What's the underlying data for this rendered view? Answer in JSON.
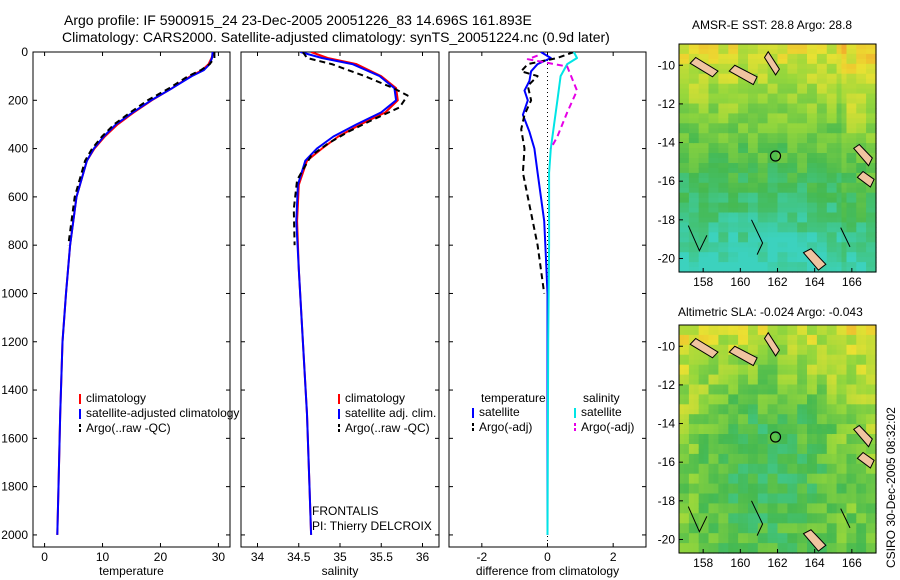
{
  "header": {
    "title_line1": "Argo profile: IF 5900915_24 23-Dec-2005 20051226_83 14.696S 161.893E",
    "title_line2": "Climatology: CARS2000. Satellite-adjusted climatology: synTS_20051224.nc (0.9d later)"
  },
  "stamp": "CSIRO 30-Dec-2005 08:32:02",
  "colors": {
    "climatology": "#ff0000",
    "satellite": "#0000ff",
    "argo": "#000000",
    "salinity_satellite": "#00e5e5",
    "salinity_argo": "#e600e6"
  },
  "chart_data": [
    {
      "type": "line",
      "id": "temperature",
      "xlabel": "temperature",
      "ylabel": "",
      "xlim": [
        -2,
        32
      ],
      "ylim": [
        2050,
        0
      ],
      "xticks": [
        0,
        10,
        20,
        30
      ],
      "yticks": [
        0,
        200,
        400,
        600,
        800,
        1000,
        1200,
        1400,
        1600,
        1800,
        2000
      ],
      "legend_position": "lower-center",
      "series": [
        {
          "name": "climatology",
          "color": "#ff0000",
          "style": "solid",
          "x": [
            29.2,
            28.8,
            28.3,
            27.2,
            25.2,
            22.0,
            18.5,
            15.4,
            12.6,
            10.4,
            8.6,
            7.3,
            5.5,
            4.4,
            3.7,
            3.1,
            2.7,
            2.4,
            2.2
          ],
          "y": [
            0,
            25,
            50,
            75,
            100,
            150,
            200,
            250,
            300,
            350,
            400,
            450,
            600,
            800,
            1000,
            1200,
            1500,
            1800,
            2000
          ]
        },
        {
          "name": "satellite-adjusted climatology",
          "color": "#0000ff",
          "style": "solid",
          "x": [
            29.0,
            28.9,
            28.5,
            27.5,
            25.4,
            22.0,
            18.4,
            15.2,
            12.3,
            10.2,
            8.5,
            7.3,
            5.5,
            4.4,
            3.7,
            3.1,
            2.7,
            2.4,
            2.2
          ],
          "y": [
            0,
            25,
            50,
            75,
            100,
            150,
            200,
            250,
            300,
            350,
            400,
            450,
            600,
            800,
            1000,
            1200,
            1500,
            1800,
            2000
          ]
        },
        {
          "name": "Argo(..raw -QC)",
          "color": "#000000",
          "style": "dash",
          "x": [
            29.3,
            29.3,
            28.5,
            27.0,
            24.8,
            21.5,
            17.8,
            14.8,
            12.0,
            9.9,
            8.2,
            7.0,
            5.2,
            4.1
          ],
          "y": [
            0,
            25,
            50,
            75,
            100,
            150,
            200,
            250,
            300,
            350,
            400,
            450,
            600,
            800
          ]
        }
      ]
    },
    {
      "type": "line",
      "id": "salinity",
      "xlabel": "salinity",
      "ylabel": "",
      "xlim": [
        33.8,
        36.2
      ],
      "ylim": [
        2050,
        0
      ],
      "xticks": [
        34,
        34.5,
        35,
        35.5,
        36
      ],
      "xtick_labels": [
        "34",
        "34.5",
        "35",
        "35.5",
        "36"
      ],
      "yticks": [
        0,
        200,
        400,
        600,
        800,
        1000,
        1200,
        1400,
        1600,
        1800,
        2000
      ],
      "legend_position": "lower-right",
      "annotation_lines": [
        "FRONTALIS",
        "PI: Thierry DELCROIX"
      ],
      "series": [
        {
          "name": "climatology",
          "color": "#ff0000",
          "style": "solid",
          "x": [
            34.65,
            34.85,
            35.2,
            35.5,
            35.68,
            35.7,
            35.55,
            35.25,
            34.98,
            34.78,
            34.6,
            34.5,
            34.48,
            34.5,
            34.55,
            34.6,
            34.63,
            34.65
          ],
          "y": [
            0,
            25,
            50,
            100,
            150,
            200,
            250,
            300,
            350,
            400,
            450,
            550,
            700,
            900,
            1200,
            1500,
            1800,
            2000
          ]
        },
        {
          "name": "satellite adj. clim.",
          "color": "#0000ff",
          "style": "solid",
          "x": [
            34.52,
            34.78,
            35.15,
            35.48,
            35.66,
            35.68,
            35.5,
            35.2,
            34.92,
            34.72,
            34.58,
            34.49,
            34.47,
            34.5,
            34.55,
            34.6,
            34.63,
            34.65
          ],
          "y": [
            0,
            25,
            50,
            100,
            150,
            200,
            250,
            300,
            350,
            400,
            450,
            550,
            700,
            900,
            1200,
            1500,
            1800,
            2000
          ]
        },
        {
          "name": "Argo(..raw -QC)",
          "color": "#000000",
          "style": "dash",
          "x": [
            34.55,
            34.6,
            34.9,
            35.3,
            35.65,
            35.82,
            35.72,
            35.4,
            35.1,
            34.85,
            34.65,
            34.48,
            34.44,
            34.45
          ],
          "y": [
            0,
            25,
            50,
            100,
            150,
            180,
            230,
            280,
            330,
            380,
            430,
            530,
            650,
            800
          ]
        }
      ]
    },
    {
      "type": "line",
      "id": "difference",
      "xlabel": "difference from climatology",
      "ylabel": "",
      "xlim": [
        -3,
        3
      ],
      "ylim": [
        2050,
        0
      ],
      "xticks": [
        -2,
        0,
        2
      ],
      "yticks": [
        0,
        200,
        400,
        600,
        800,
        1000,
        1200,
        1400,
        1600,
        1800,
        2000
      ],
      "legend_position": "lower-center",
      "legend_headers": [
        "temperature",
        "salinity"
      ],
      "series": [
        {
          "name": "satellite",
          "group": "temperature",
          "color": "#0000ff",
          "style": "solid",
          "x": [
            -0.2,
            0.1,
            -0.3,
            -0.5,
            -0.55,
            -0.7,
            -0.6,
            -0.75,
            -0.55,
            -0.4,
            -0.3,
            -0.2,
            -0.1,
            -0.05,
            0.0,
            0.0
          ],
          "y": [
            0,
            25,
            50,
            80,
            120,
            160,
            200,
            260,
            330,
            400,
            500,
            600,
            700,
            850,
            1000,
            2000
          ]
        },
        {
          "name": "Argo(-adj)",
          "group": "temperature",
          "color": "#000000",
          "style": "dash",
          "x": [
            0.8,
            0.3,
            -0.6,
            -0.8,
            -0.3,
            -0.6,
            -0.5,
            -0.7,
            -0.8,
            -0.7,
            -0.75,
            -0.6,
            -0.45,
            -0.3,
            -0.2,
            -0.1
          ],
          "y": [
            0,
            25,
            50,
            80,
            100,
            140,
            200,
            260,
            320,
            400,
            500,
            600,
            700,
            800,
            900,
            1000
          ]
        },
        {
          "name": "satellite",
          "group": "salinity",
          "color": "#00e5e5",
          "style": "solid",
          "x": [
            0.8,
            0.9,
            0.6,
            0.4,
            0.3,
            0.2,
            0.1,
            0.05,
            0.05,
            0.05,
            0.05,
            0.02,
            0.0
          ],
          "y": [
            0,
            25,
            50,
            100,
            200,
            300,
            400,
            500,
            600,
            700,
            800,
            1200,
            2000
          ]
        },
        {
          "name": "Argo(-adj)",
          "group": "salinity",
          "color": "#e600e6",
          "style": "dash",
          "x": [
            -0.3,
            -0.6,
            0.6,
            0.9,
            0.6,
            0.3,
            0.1
          ],
          "y": [
            15,
            30,
            60,
            160,
            250,
            350,
            400
          ]
        }
      ]
    },
    {
      "type": "heatmap",
      "id": "sst-map",
      "title": "AMSR-E SST: 28.8  Argo: 28.8",
      "xlim": [
        156.7,
        167.3
      ],
      "ylim": [
        -20.7,
        -8.9
      ],
      "xticks": [
        158,
        160,
        162,
        164,
        166
      ],
      "yticks": [
        -10,
        -12,
        -14,
        -16,
        -18,
        -20
      ],
      "argo_position": {
        "lon": 161.893,
        "lat": -14.696
      }
    },
    {
      "type": "heatmap",
      "id": "sla-map",
      "title": "Altimetric SLA: -0.024  Argo: -0.043",
      "xlim": [
        156.7,
        167.3
      ],
      "ylim": [
        -20.7,
        -8.9
      ],
      "xticks": [
        158,
        160,
        162,
        164,
        166
      ],
      "yticks": [
        -10,
        -12,
        -14,
        -16,
        -18,
        -20
      ],
      "argo_position": {
        "lon": 161.893,
        "lat": -14.696
      }
    }
  ],
  "legends": {
    "temperature": [
      "climatology",
      "satellite-adjusted climatology",
      "Argo(..raw -QC)"
    ],
    "salinity": [
      "climatology",
      "satellite adj. clim.",
      "Argo(..raw -QC)"
    ],
    "difference": {
      "header_left": "temperature",
      "header_right": "salinity",
      "left": [
        "satellite",
        "Argo(-adj)"
      ],
      "right": [
        "satellite",
        "Argo(-adj)"
      ]
    }
  }
}
